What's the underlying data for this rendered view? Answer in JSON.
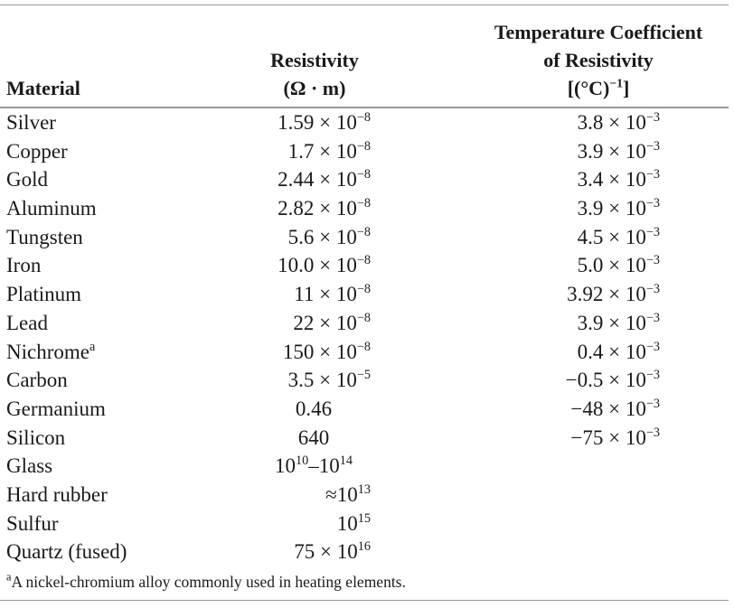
{
  "headers": {
    "material": "Material",
    "resistivity_line1": "Resistivity",
    "resistivity_line2": "(Ω · m)",
    "tc_line1": "Temperature Coefficient",
    "tc_line2": "of Resistivity",
    "tc_line3_base": "[(°C)",
    "tc_line3_exp": "−1",
    "tc_line3_close": "]"
  },
  "rows": [
    {
      "material": "Silver",
      "res_base": "1.59 × 10",
      "res_exp": "−8",
      "tc_base": "3.8 × 10",
      "tc_exp": "−3"
    },
    {
      "material": "Copper",
      "res_base": "1.7 × 10",
      "res_exp": "−8",
      "tc_base": "3.9 × 10",
      "tc_exp": "−3"
    },
    {
      "material": "Gold",
      "res_base": "2.44 × 10",
      "res_exp": "−8",
      "tc_base": "3.4 × 10",
      "tc_exp": "−3"
    },
    {
      "material": "Aluminum",
      "res_base": "2.82 × 10",
      "res_exp": "−8",
      "tc_base": "3.9 × 10",
      "tc_exp": "−3"
    },
    {
      "material": "Tungsten",
      "res_base": "5.6 × 10",
      "res_exp": "−8",
      "tc_base": "4.5 × 10",
      "tc_exp": "−3"
    },
    {
      "material": "Iron",
      "res_base": "10.0 × 10",
      "res_exp": "−8",
      "tc_base": "5.0 × 10",
      "tc_exp": "−3"
    },
    {
      "material": "Platinum",
      "res_base": "11 × 10",
      "res_exp": "−8",
      "tc_base": "3.92 × 10",
      "tc_exp": "−3"
    },
    {
      "material": "Lead",
      "res_base": "22 × 10",
      "res_exp": "−8",
      "tc_base": "3.9 × 10",
      "tc_exp": "−3"
    },
    {
      "material": "Nichrome",
      "material_sup": "a",
      "res_base": "150 × 10",
      "res_exp": "−8",
      "tc_base": "0.4 × 10",
      "tc_exp": "−3"
    },
    {
      "material": "Carbon",
      "res_base": "3.5 × 10",
      "res_exp": "−5",
      "tc_base": "−0.5 × 10",
      "tc_exp": "−3"
    },
    {
      "material": "Germanium",
      "res_plain": "0.46",
      "tc_base": "−48 × 10",
      "tc_exp": "−3"
    },
    {
      "material": "Silicon",
      "res_plain": "640",
      "tc_base": "−75 × 10",
      "tc_exp": "−3"
    },
    {
      "material": "Glass",
      "res_a": "10",
      "res_a_exp": "10",
      "res_b": "–10",
      "res_b_exp": "14"
    },
    {
      "material": "Hard rubber",
      "res_base": "≈10",
      "res_exp": "13"
    },
    {
      "material": "Sulfur",
      "res_base": "10",
      "res_exp": "15"
    },
    {
      "material": "Quartz (fused)",
      "res_base": "75 × 10",
      "res_exp": "16"
    }
  ],
  "footnote": {
    "marker": "a",
    "text": "A nickel-chromium alloy commonly used in heating elements."
  }
}
